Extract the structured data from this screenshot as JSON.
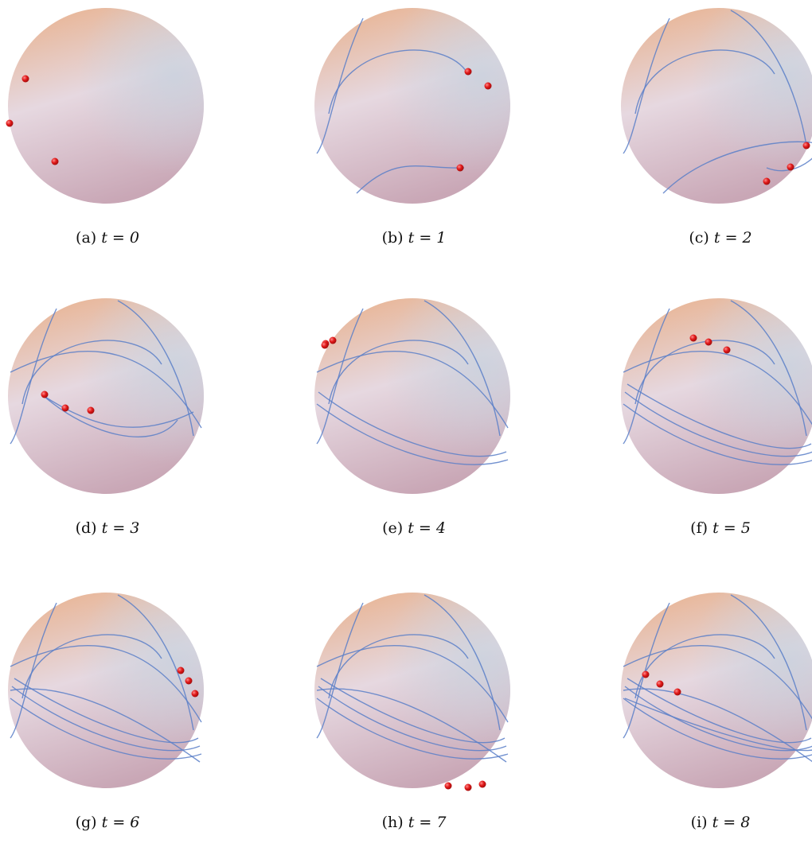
{
  "panels": [
    {
      "label": "(a)",
      "t_text": "t = 0"
    },
    {
      "label": "(b)",
      "t_text": "t = 1"
    },
    {
      "label": "(c)",
      "t_text": "t = 2"
    },
    {
      "label": "(d)",
      "t_text": "t = 3"
    },
    {
      "label": "(e)",
      "t_text": "t = 4"
    },
    {
      "label": "(f)",
      "t_text": "t = 5"
    },
    {
      "label": "(g)",
      "t_text": "t = 6"
    },
    {
      "label": "(h)",
      "t_text": "t = 7"
    },
    {
      "label": "(i)",
      "t_text": "t = 8"
    }
  ],
  "colors": {
    "sphere_top": "#e8b493",
    "sphere_mid": "#e6d8e0",
    "sphere_bottom": "#c9a7b6",
    "trail": "#5b7fc8",
    "particle": "#e01818"
  }
}
